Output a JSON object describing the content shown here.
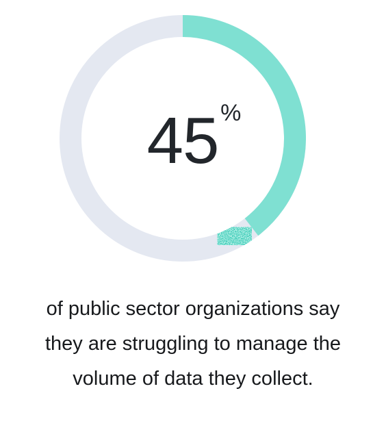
{
  "colors": {
    "progress": "#7fe0d2",
    "progress_dark": "#3ccdb9",
    "track": "#e4e8f1",
    "text": "#22262b"
  },
  "chart_data": {
    "type": "donut",
    "value": 45,
    "max": 100,
    "label_number": "45",
    "label_unit": "%"
  },
  "caption": {
    "line1": "of public sector organizations say",
    "line2": "they are struggling to manage the",
    "line3": "volume of data they collect."
  }
}
